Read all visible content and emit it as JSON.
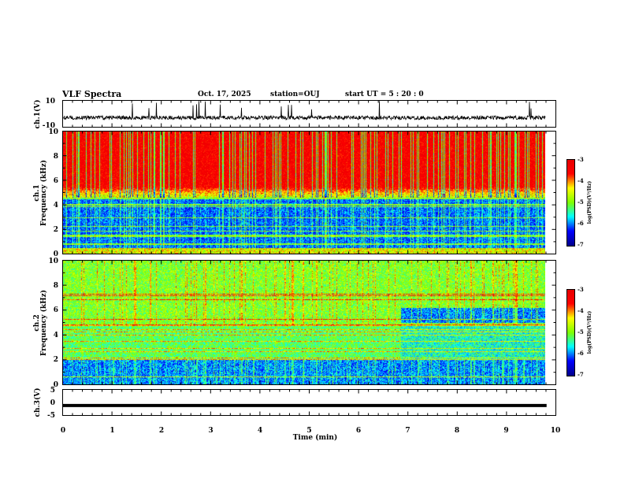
{
  "header": {
    "title": "VLF Spectra",
    "date": "Oct. 17, 2025",
    "station": "station=OUJ",
    "start": "start  UT  =  5 : 20 : 0"
  },
  "colors": {
    "frame": "#000000",
    "colormap": [
      "#00008f",
      "#0000ff",
      "#00ffff",
      "#80ff00",
      "#ffff00",
      "#ff0000",
      "#e60000"
    ]
  },
  "chart_data": [
    {
      "type": "line",
      "name": "ch1-waveform",
      "ylabel": "ch.1(V)",
      "ylim": [
        -10,
        10
      ],
      "yticks": [
        "10",
        "-10"
      ],
      "description_level": "baseline near -3 V with spikes to about +10 V",
      "x_range_min": [
        0,
        9.82
      ]
    },
    {
      "type": "heatmap",
      "name": "ch1-spectrogram",
      "ylabel": "ch.1\nFrequency (kHz)",
      "ylabel_lines": [
        "ch.1",
        "Frequency (kHz)"
      ],
      "ylim": [
        0,
        10
      ],
      "yticks": [
        "0",
        "2",
        "4",
        "6",
        "8",
        "10"
      ],
      "colorbar": {
        "label": "log(PSD)(V²/Hz)",
        "ticks": [
          "-3",
          "-4",
          "-5",
          "-6",
          "-7"
        ],
        "range": [
          -7,
          -3
        ]
      }
    },
    {
      "type": "heatmap",
      "name": "ch2-spectrogram",
      "ylabel_lines": [
        "ch.2",
        "Frequency (kHz)"
      ],
      "ylim": [
        0,
        10
      ],
      "yticks": [
        "0",
        "2",
        "4",
        "6",
        "8",
        "10"
      ],
      "colorbar": {
        "label": "log(PSD)(V²/Hz)",
        "ticks": [
          "-3",
          "-4",
          "-5",
          "-6",
          "-7"
        ],
        "range": [
          -7,
          -3
        ]
      }
    },
    {
      "type": "line",
      "name": "ch3-waveform",
      "ylabel": "ch.3(V)",
      "ylim": [
        -5,
        5
      ],
      "yticks": [
        "5",
        "0",
        "-5"
      ],
      "level": -1.2
    }
  ],
  "xaxis": {
    "label": "Time (min)",
    "ticks": [
      "0",
      "1",
      "2",
      "3",
      "4",
      "5",
      "6",
      "7",
      "8",
      "9",
      "10"
    ],
    "xlim": [
      0,
      10
    ]
  }
}
